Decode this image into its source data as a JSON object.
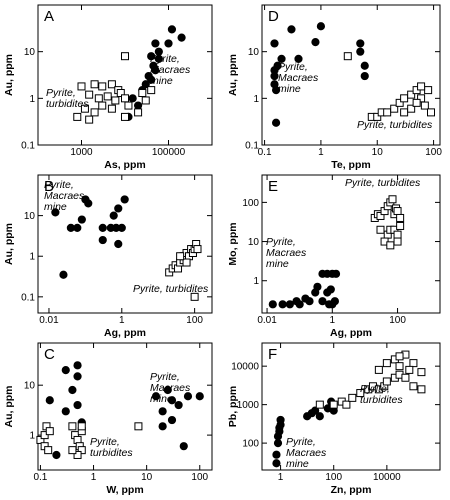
{
  "chart_data": [
    {
      "type": "scatter",
      "panel_label": "A",
      "xlabel": "As, ppm",
      "ylabel": "Au, ppm",
      "xscale": "log",
      "yscale": "log",
      "xlim": [
        100,
        1000000
      ],
      "ylim": [
        0.1,
        100
      ],
      "xticks": [
        1000,
        100000
      ],
      "yticks": [
        0.1,
        1,
        10
      ],
      "series": [
        {
          "name": "Pyrite, Macraes mine",
          "color": "#000000",
          "marker": "circle",
          "x": [
            120000,
            200000,
            50000,
            100000,
            60000,
            40000,
            60000,
            45000,
            50000,
            35000,
            40000,
            30000,
            25000,
            15000,
            12000,
            20000
          ],
          "values": [
            30,
            20,
            15,
            15,
            10,
            8,
            7,
            5,
            4,
            3,
            2.5,
            2,
            1.5,
            1,
            0.4,
            0.7
          ]
        },
        {
          "name": "Pyrite, turbidites",
          "color": "#000000",
          "marker": "square",
          "x": [
            10000,
            1000,
            2000,
            3000,
            5000,
            7000,
            1500,
            2500,
            4000,
            6000,
            8000,
            10000,
            1200,
            2000,
            3000,
            5000,
            800,
            1500,
            10000,
            12000,
            20000,
            25000,
            30000,
            40000
          ],
          "values": [
            8,
            1.8,
            2,
            1.8,
            2,
            1.5,
            1.2,
            1,
            1.1,
            0.9,
            1.3,
            1,
            0.6,
            0.5,
            0.7,
            0.6,
            0.4,
            0.35,
            0.4,
            0.7,
            0.5,
            1.3,
            0.9,
            1.5
          ]
        }
      ]
    },
    {
      "type": "scatter",
      "panel_label": "D",
      "xlabel": "Te, ppm",
      "ylabel": "Au, ppm",
      "xscale": "log",
      "yscale": "log",
      "xlim": [
        0.09,
        130
      ],
      "ylim": [
        0.1,
        100
      ],
      "xticks": [
        0.1,
        1,
        10,
        100
      ],
      "yticks": [
        0.1,
        1,
        10
      ],
      "series": [
        {
          "name": "Pyrite, Macraes mine",
          "color": "#000000",
          "marker": "circle",
          "x": [
            0.15,
            0.17,
            0.15,
            0.16,
            0.15,
            0.16,
            0.2,
            0.15,
            0.4,
            0.3,
            0.8,
            1,
            5,
            5,
            6,
            6
          ],
          "values": [
            15,
            5,
            4,
            1.5,
            2,
            0.3,
            7,
            3,
            7,
            30,
            16,
            35,
            15,
            10,
            5,
            3
          ]
        },
        {
          "name": "Pyrite, turbidites",
          "color": "#000000",
          "marker": "square",
          "x": [
            3,
            8,
            10,
            12,
            15,
            20,
            25,
            30,
            40,
            50,
            60,
            30,
            40,
            50,
            70,
            80,
            90,
            60
          ],
          "values": [
            8,
            0.4,
            0.4,
            0.5,
            0.5,
            0.6,
            0.8,
            1,
            1.2,
            1.5,
            1,
            0.5,
            0.6,
            0.8,
            0.7,
            1.5,
            0.5,
            1.8
          ]
        }
      ]
    },
    {
      "type": "scatter",
      "panel_label": "B",
      "xlabel": "Ag, ppm",
      "ylabel": "Au, ppm",
      "xscale": "log",
      "yscale": "log",
      "xlim": [
        0.005,
        300
      ],
      "ylim": [
        0.04,
        100
      ],
      "xticks": [
        0.01,
        1,
        100
      ],
      "yticks": [
        0.1,
        1,
        10
      ],
      "series": [
        {
          "name": "Pyrite, Macraes mine",
          "color": "#000000",
          "marker": "circle",
          "x": [
            0.015,
            0.1,
            0.12,
            0.06,
            0.08,
            0.04,
            0.3,
            0.5,
            0.3,
            0.6,
            0.8,
            0.7,
            1,
            0.8,
            1.2,
            0.025
          ],
          "values": [
            12,
            25,
            20,
            5,
            8,
            5,
            5,
            5,
            2.5,
            10,
            15,
            5,
            5,
            2,
            25,
            0.35
          ]
        },
        {
          "name": "Pyrite, turbidites",
          "color": "#000000",
          "marker": "square",
          "x": [
            20,
            25,
            30,
            35,
            40,
            50,
            50,
            60,
            70,
            80,
            90,
            100,
            110,
            120,
            60,
            40,
            100
          ],
          "values": [
            0.4,
            0.5,
            0.6,
            0.5,
            0.7,
            0.8,
            1,
            1.2,
            1,
            1.5,
            1.2,
            1.5,
            2,
            1.5,
            0.7,
            1,
            0.1
          ]
        }
      ]
    },
    {
      "type": "scatter",
      "panel_label": "E",
      "xlabel": "Ag, ppm",
      "ylabel": "Mo, ppm",
      "xscale": "log",
      "yscale": "log",
      "xlim": [
        0.007,
        2000
      ],
      "ylim": [
        0.15,
        500
      ],
      "xticks": [
        0.01,
        1,
        100
      ],
      "yticks": [
        1,
        10,
        100
      ],
      "series": [
        {
          "name": "Pyrite, Macraes mine",
          "color": "#000000",
          "marker": "circle",
          "x": [
            0.015,
            0.03,
            0.05,
            0.08,
            0.1,
            0.15,
            0.2,
            0.3,
            0.5,
            0.7,
            0.8,
            1,
            1.2,
            0.5,
            0.7,
            1,
            1.3,
            0.35,
            0.9
          ],
          "values": [
            0.25,
            0.25,
            0.25,
            0.3,
            0.25,
            0.35,
            0.3,
            0.5,
            0.3,
            0.5,
            0.25,
            0.25,
            0.3,
            1.5,
            1.5,
            1.5,
            1.5,
            0.7,
            0.6
          ]
        },
        {
          "name": "Pyrite, turbidites",
          "color": "#000000",
          "marker": "square",
          "x": [
            20,
            25,
            30,
            40,
            50,
            60,
            70,
            80,
            90,
            100,
            120,
            30,
            50,
            60,
            80,
            100,
            120,
            40,
            60,
            100
          ],
          "values": [
            40,
            50,
            45,
            60,
            80,
            100,
            120,
            50,
            70,
            60,
            40,
            20,
            15,
            20,
            20,
            15,
            25,
            10,
            8,
            10
          ]
        }
      ]
    },
    {
      "type": "scatter",
      "panel_label": "C",
      "xlabel": "W, ppm",
      "ylabel": "Au, ppm",
      "xscale": "log",
      "yscale": "log",
      "xlim": [
        0.09,
        170
      ],
      "ylim": [
        0.2,
        70
      ],
      "xticks": [
        0.1,
        1,
        10,
        100
      ],
      "yticks": [
        1,
        10
      ],
      "series": [
        {
          "name": "Pyrite, Macraes mine",
          "color": "#000000",
          "marker": "circle",
          "x": [
            0.15,
            0.3,
            0.3,
            0.4,
            0.5,
            0.5,
            0.6,
            0.2,
            0.5,
            15,
            20,
            25,
            30,
            40,
            30,
            20,
            50,
            60,
            100
          ],
          "values": [
            5,
            20,
            3,
            8,
            25,
            4,
            1.8,
            0.4,
            15,
            6,
            3,
            8,
            5,
            4,
            2,
            1.5,
            0.6,
            6,
            6
          ]
        },
        {
          "name": "Pyrite, turbidites",
          "color": "#000000",
          "marker": "square",
          "x": [
            0.1,
            0.12,
            0.13,
            0.15,
            0.12,
            0.14,
            0.4,
            0.45,
            0.5,
            0.55,
            0.6,
            0.6,
            0.5,
            0.6,
            0.4,
            7
          ],
          "values": [
            0.8,
            1,
            1.5,
            1.2,
            0.6,
            0.5,
            1.5,
            1,
            0.8,
            0.6,
            1.2,
            0.5,
            0.4,
            1.5,
            0.5,
            1.5
          ]
        }
      ]
    },
    {
      "type": "scatter",
      "panel_label": "F",
      "xlabel": "Zn, ppm",
      "ylabel": "Pb, ppm",
      "xscale": "log",
      "yscale": "log",
      "xlim": [
        0.2,
        1000000
      ],
      "ylim": [
        20,
        40000
      ],
      "xticks": [
        1,
        100,
        10000
      ],
      "yticks": [
        100,
        1000,
        10000
      ],
      "series": [
        {
          "name": "Pyrite, Macraes mine",
          "color": "#000000",
          "marker": "circle",
          "x": [
            0.7,
            0.7,
            0.8,
            0.8,
            0.9,
            0.9,
            1,
            1,
            10,
            15,
            20,
            30,
            60,
            90,
            100,
            80
          ],
          "values": [
            30,
            50,
            100,
            150,
            200,
            250,
            300,
            400,
            500,
            600,
            700,
            500,
            800,
            1000,
            700,
            1200
          ]
        },
        {
          "name": "Pyrite, turbidites",
          "color": "#000000",
          "marker": "square",
          "x": [
            30,
            100,
            200,
            300,
            500,
            1000,
            2000,
            3000,
            5000,
            8000,
            10000,
            20000,
            30000,
            50000,
            100000,
            200000,
            5000,
            10000,
            20000,
            30000,
            50000,
            100000,
            30000,
            70000,
            200000
          ],
          "values": [
            1000,
            1000,
            1200,
            1000,
            1500,
            2000,
            2500,
            3000,
            2500,
            3000,
            4000,
            5000,
            6000,
            5000,
            3000,
            2500,
            8000,
            12000,
            15000,
            10000,
            20000,
            12000,
            18000,
            8000,
            7000
          ]
        }
      ]
    }
  ]
}
